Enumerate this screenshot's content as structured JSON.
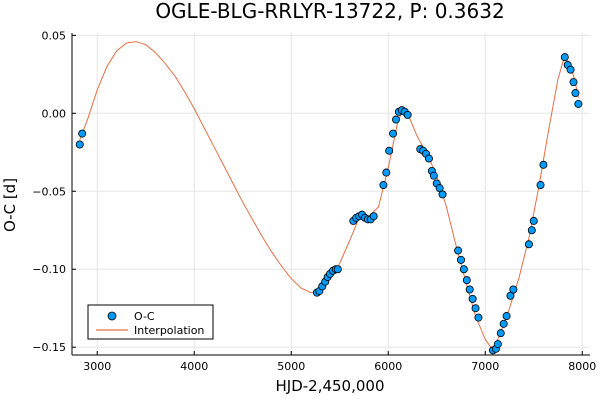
{
  "chart_data": {
    "type": "scatter",
    "title": "OGLE-BLG-RRLYR-13722, P: 0.3632",
    "xlabel": "HJD-2,450,000",
    "ylabel": "O-C [d]",
    "xlim": [
      2740,
      8080
    ],
    "ylim": [
      -0.155,
      0.0515
    ],
    "xticks": [
      3000,
      4000,
      5000,
      6000,
      7000,
      8000
    ],
    "yticks": [
      -0.15,
      -0.1,
      -0.05,
      0.0,
      0.05
    ],
    "ytick_labels": [
      "−0.15",
      "−0.10",
      "−0.05",
      "0.00",
      "0.05"
    ],
    "grid": true,
    "legend_position": "bottom-left",
    "series": [
      {
        "name": "O-C",
        "kind": "scatter",
        "color": "#009AFA",
        "x": [
          2820,
          2845,
          5265,
          5290,
          5320,
          5350,
          5375,
          5400,
          5430,
          5460,
          5480,
          5640,
          5670,
          5700,
          5730,
          5760,
          5790,
          5820,
          5850,
          5950,
          5980,
          6010,
          6050,
          6080,
          6110,
          6140,
          6170,
          6200,
          6330,
          6360,
          6390,
          6420,
          6450,
          6470,
          6500,
          6530,
          6560,
          6720,
          6750,
          6780,
          6810,
          6840,
          6870,
          6900,
          6930,
          7080,
          7110,
          7130,
          7160,
          7190,
          7220,
          7260,
          7290,
          7450,
          7480,
          7500,
          7570,
          7600,
          7820,
          7850,
          7880,
          7910,
          7930,
          7960
        ],
        "y": [
          -0.02,
          -0.013,
          -0.115,
          -0.114,
          -0.111,
          -0.108,
          -0.105,
          -0.103,
          -0.101,
          -0.1,
          -0.1,
          -0.069,
          -0.067,
          -0.066,
          -0.065,
          -0.067,
          -0.068,
          -0.068,
          -0.066,
          -0.046,
          -0.038,
          -0.024,
          -0.013,
          -0.004,
          0.001,
          0.002,
          0.001,
          -0.001,
          -0.023,
          -0.024,
          -0.026,
          -0.029,
          -0.037,
          -0.04,
          -0.045,
          -0.048,
          -0.052,
          -0.088,
          -0.094,
          -0.1,
          -0.107,
          -0.113,
          -0.119,
          -0.125,
          -0.131,
          -0.152,
          -0.151,
          -0.148,
          -0.141,
          -0.135,
          -0.13,
          -0.117,
          -0.113,
          -0.084,
          -0.075,
          -0.069,
          -0.046,
          -0.033,
          0.036,
          0.031,
          0.028,
          0.02,
          0.013,
          0.006
        ]
      },
      {
        "name": "Interpolation",
        "kind": "line",
        "color": "#E26F46",
        "x": [
          2820,
          2900,
          3000,
          3100,
          3200,
          3300,
          3400,
          3500,
          3600,
          3700,
          3800,
          3900,
          4000,
          4100,
          4200,
          4300,
          4400,
          4500,
          4600,
          4700,
          4800,
          4900,
          5000,
          5100,
          5200,
          5265,
          5350,
          5480,
          5600,
          5700,
          5800,
          5900,
          6000,
          6100,
          6150,
          6200,
          6300,
          6400,
          6500,
          6600,
          6700,
          6800,
          6900,
          7000,
          7080,
          7150,
          7250,
          7350,
          7450,
          7550,
          7650,
          7750,
          7820,
          7870,
          7920,
          7960
        ],
        "y": [
          -0.017,
          -0.004,
          0.015,
          0.03,
          0.04,
          0.045,
          0.046,
          0.044,
          0.039,
          0.032,
          0.024,
          0.014,
          0.003,
          -0.009,
          -0.021,
          -0.033,
          -0.045,
          -0.057,
          -0.068,
          -0.079,
          -0.089,
          -0.098,
          -0.106,
          -0.112,
          -0.115,
          -0.115,
          -0.108,
          -0.099,
          -0.082,
          -0.067,
          -0.066,
          -0.06,
          -0.035,
          -0.005,
          0.002,
          0.0,
          -0.015,
          -0.026,
          -0.04,
          -0.06,
          -0.085,
          -0.108,
          -0.13,
          -0.145,
          -0.152,
          -0.142,
          -0.125,
          -0.105,
          -0.08,
          -0.048,
          -0.012,
          0.022,
          0.037,
          0.032,
          0.022,
          0.01
        ]
      }
    ]
  }
}
